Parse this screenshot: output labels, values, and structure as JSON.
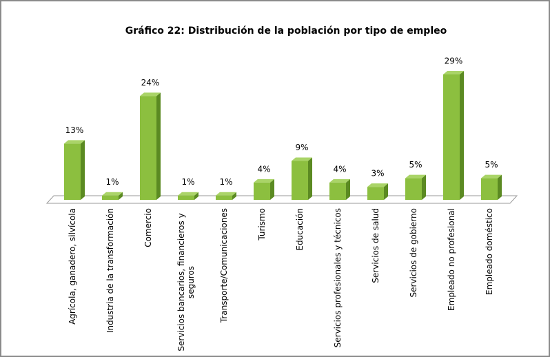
{
  "chart_data": {
    "type": "bar3d",
    "title": "Gráfico 22: Distribución de la población por tipo de empleo",
    "categories": [
      "Agrícola, ganadero, silvícola",
      "Industria de la transformación",
      "Comercio",
      "Servicios bancarios, financieros y seguros",
      "Transporte/Comunicaciones",
      "Turismo",
      "Educación",
      "Servicios profesionales y técnicos",
      "Servicios de salud",
      "Servicios de gobierno",
      "Empleado no profesional",
      "Empleado doméstico"
    ],
    "values": [
      13,
      1,
      24,
      1,
      1,
      4,
      9,
      4,
      3,
      5,
      29,
      5
    ],
    "value_labels": [
      "13%",
      "1%",
      "24%",
      "1%",
      "1%",
      "4%",
      "9%",
      "4%",
      "3%",
      "5%",
      "29%",
      "5%"
    ],
    "color": "#8cbf3f"
  }
}
